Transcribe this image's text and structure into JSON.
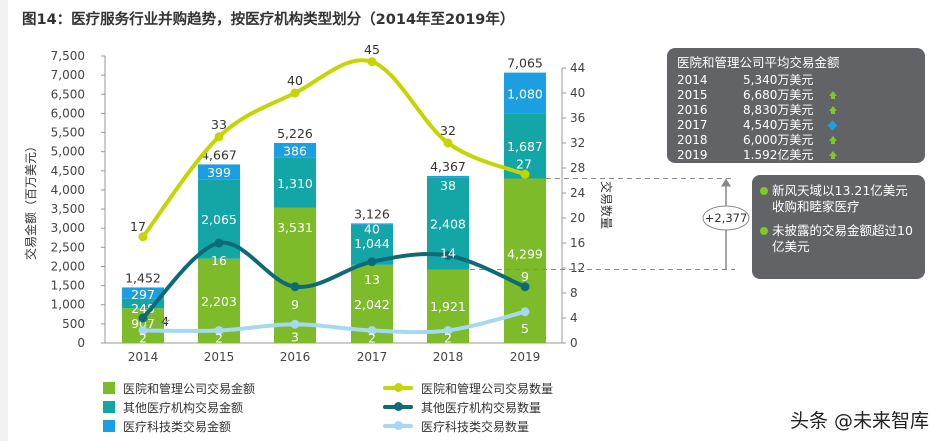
{
  "title": "图14：医疗服务行业并购趋势，按医疗机构类型划分（2014年至2019年）",
  "chart_data": {
    "type": "bar+line",
    "categories": [
      "2014",
      "2015",
      "2016",
      "2017",
      "2018",
      "2019"
    ],
    "ylabel": "交易金额（百万美元）",
    "y2label": "交易数量",
    "ylim": [
      0,
      7500
    ],
    "y2lim": [
      0,
      44
    ],
    "yticks": [
      "0",
      "500",
      "1,000",
      "1,500",
      "2,000",
      "2,500",
      "3,000",
      "3,500",
      "4,000",
      "4,500",
      "5,000",
      "5,500",
      "6,000",
      "6,500",
      "7,000",
      "7,500"
    ],
    "y2ticks": [
      "0",
      "4",
      "8",
      "12",
      "16",
      "20",
      "24",
      "28",
      "32",
      "36",
      "40",
      "44"
    ],
    "bar_series": [
      {
        "name": "医院和管理公司交易金额",
        "color": "#7dbb2a",
        "values": [
          907,
          2203,
          3531,
          2042,
          1921,
          4299
        ],
        "labels": [
          "907",
          "2,203",
          "3,531",
          "2,042",
          "1,921",
          "4,299"
        ]
      },
      {
        "name": "其他医疗机构交易金额",
        "color": "#14a6a6",
        "values": [
          248,
          2065,
          1310,
          1044,
          2408,
          1687
        ],
        "labels": [
          "248",
          "2,065",
          "1,310",
          "1,044",
          "2,408",
          "1,687"
        ]
      },
      {
        "name": "医疗科技类交易金额",
        "color": "#1c9fe0",
        "values": [
          297,
          399,
          386,
          40,
          38,
          1080
        ],
        "labels": [
          "297",
          "399",
          "386",
          "40",
          "38",
          "1,080"
        ]
      }
    ],
    "totals": [
      "1,452",
      "4,667",
      "5,226",
      "3,126",
      "4,367",
      "7,065"
    ],
    "line_series": [
      {
        "name": "医院和管理公司交易数量",
        "color": "#c3d600",
        "values": [
          17,
          33,
          40,
          45,
          32,
          27
        ]
      },
      {
        "name": "其他医疗机构交易数量",
        "color": "#0e6b75",
        "values": [
          4,
          16,
          9,
          13,
          14,
          9
        ]
      },
      {
        "name": "医疗科技类交易数量",
        "color": "#a7d8f2",
        "values": [
          2,
          2,
          3,
          2,
          2,
          5
        ]
      }
    ],
    "annotation": "+2,377"
  },
  "box1": {
    "heading": "医院和管理公司平均交易金额",
    "rows": [
      {
        "year": "2014",
        "value": "5,340万美元",
        "trend": ""
      },
      {
        "year": "2015",
        "value": "6,680万美元",
        "trend": "up"
      },
      {
        "year": "2016",
        "value": "8,830万美元",
        "trend": "up"
      },
      {
        "year": "2017",
        "value": "4,540万美元",
        "trend": "down"
      },
      {
        "year": "2018",
        "value": "6,000万美元",
        "trend": "up"
      },
      {
        "year": "2019",
        "value": "1.592亿美元",
        "trend": "up"
      }
    ]
  },
  "box2": {
    "bullets": [
      "新风天域以13.21亿美元收购和睦家医疗",
      "未披露的交易金额超过10亿美元"
    ]
  },
  "watermark": "头条 @未来智库"
}
